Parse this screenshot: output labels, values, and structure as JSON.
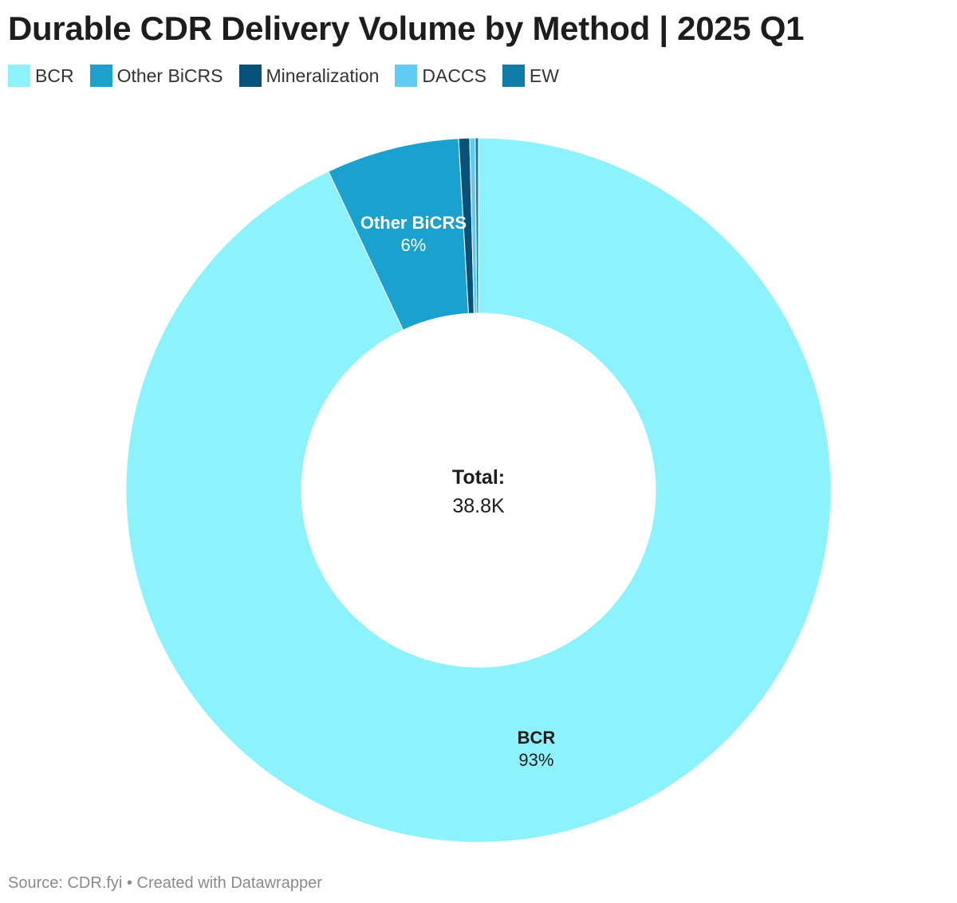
{
  "title": "Durable CDR Delivery Volume by Method | 2025 Q1",
  "footer": {
    "source": "Source: CDR.fyi",
    "separator": "•",
    "credit": "Created with Datawrapper"
  },
  "center": {
    "label": "Total:",
    "value": "38.8K"
  },
  "chart_data": {
    "type": "pie",
    "variant": "donut",
    "title": "Durable CDR Delivery Volume by Method | 2025 Q1",
    "legend_position": "top-left",
    "total": 38800,
    "total_label": "38.8K",
    "categories": [
      "BCR",
      "Other BiCRS",
      "Mineralization",
      "DACCS",
      "EW"
    ],
    "values": [
      93.0,
      6.1,
      0.5,
      0.25,
      0.15
    ],
    "unit": "%",
    "colors": [
      "#8cf3fc",
      "#1aa1cd",
      "#07527a",
      "#60ccf6",
      "#117ca8"
    ],
    "data_labels": [
      {
        "category": "BCR",
        "name": "BCR",
        "value": "93%",
        "text_color": "#1d1d1d"
      },
      {
        "category": "Other BiCRS",
        "name": "Other BiCRS",
        "value": "6%",
        "text_color": "#ffffff"
      }
    ]
  }
}
